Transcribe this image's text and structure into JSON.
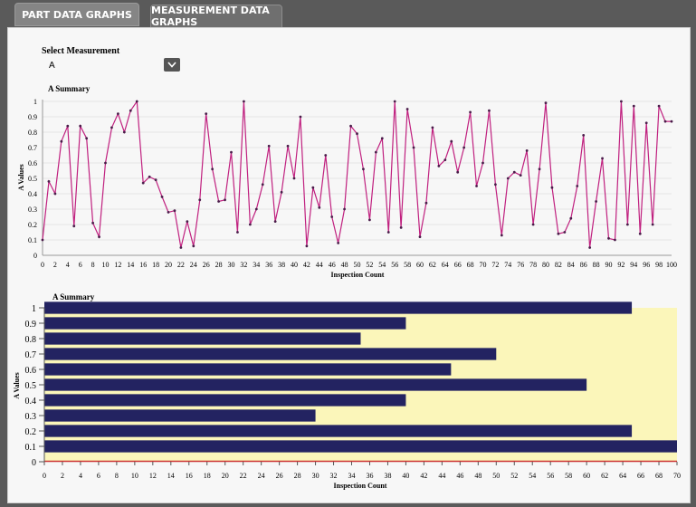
{
  "tabs": {
    "part": "PART DATA GRAPHS",
    "measurement": "MEASUREMENT DATA GRAPHS"
  },
  "select": {
    "label": "Select Measurement",
    "value": "A"
  },
  "colors": {
    "line": "#c0207f",
    "marker": "#4a1d4a",
    "bar": "#232361",
    "plot_bg": "#fbf6ba",
    "zero_line": "#cc3333"
  },
  "chart_data": [
    {
      "type": "line",
      "title": "A Summary",
      "xlabel": "Inspection Count",
      "ylabel": "A Values",
      "xlim": [
        0,
        100
      ],
      "ylim": [
        0,
        1
      ],
      "x_ticks": [
        0,
        2,
        4,
        6,
        8,
        10,
        12,
        14,
        16,
        18,
        20,
        22,
        24,
        26,
        28,
        30,
        32,
        34,
        36,
        38,
        40,
        42,
        44,
        46,
        48,
        50,
        52,
        54,
        56,
        58,
        60,
        62,
        64,
        66,
        68,
        70,
        72,
        74,
        76,
        78,
        80,
        82,
        84,
        86,
        88,
        90,
        92,
        94,
        96,
        98,
        100
      ],
      "y_ticks": [
        0,
        0.1,
        0.2,
        0.3,
        0.4,
        0.5,
        0.6,
        0.7,
        0.8,
        0.9,
        1
      ],
      "grid": "horizontal",
      "series": [
        {
          "x": [
            0,
            1,
            2,
            3,
            4,
            5,
            6,
            7,
            8,
            9,
            10,
            11,
            12,
            13,
            14,
            15,
            16,
            17,
            18,
            19,
            20,
            21,
            22,
            23,
            24,
            25,
            26,
            27,
            28,
            29,
            30,
            31,
            32,
            33,
            34,
            35,
            36,
            37,
            38,
            39,
            40,
            41,
            42,
            43,
            44,
            45,
            46,
            47,
            48,
            49,
            50,
            51,
            52,
            53,
            54,
            55,
            56,
            57,
            58,
            59,
            60,
            61,
            62,
            63,
            64,
            65,
            66,
            67,
            68,
            69,
            70,
            71,
            72,
            73,
            74,
            75,
            76,
            77,
            78,
            79,
            80,
            81,
            82,
            83,
            84,
            85,
            86,
            87,
            88,
            89,
            90,
            91,
            92,
            93,
            94,
            95,
            96,
            97,
            98,
            99,
            100
          ],
          "values": [
            0.1,
            0.48,
            0.4,
            0.74,
            0.84,
            0.19,
            0.84,
            0.76,
            0.21,
            0.12,
            0.6,
            0.83,
            0.92,
            0.8,
            0.94,
            1.0,
            0.47,
            0.51,
            0.49,
            0.38,
            0.28,
            0.29,
            0.05,
            0.22,
            0.06,
            0.36,
            0.92,
            0.56,
            0.35,
            0.36,
            0.67,
            0.15,
            1.0,
            0.2,
            0.3,
            0.46,
            0.71,
            0.22,
            0.41,
            0.71,
            0.5,
            0.9,
            0.06,
            0.44,
            0.31,
            0.65,
            0.25,
            0.08,
            0.3,
            0.84,
            0.79,
            0.56,
            0.23,
            0.67,
            0.76,
            0.15,
            1.0,
            0.18,
            0.95,
            0.7,
            0.12,
            0.34,
            0.83,
            0.58,
            0.62,
            0.74,
            0.54,
            0.7,
            0.93,
            0.45,
            0.6,
            0.94,
            0.46,
            0.13,
            0.5,
            0.54,
            0.52,
            0.68,
            0.2,
            0.56,
            0.99,
            0.44,
            0.14,
            0.15,
            0.24,
            0.45,
            0.78,
            0.05,
            0.35,
            0.63,
            0.11,
            0.1,
            1.0,
            0.2,
            0.97,
            0.14,
            0.86,
            0.2,
            0.97,
            0.87,
            0.87
          ]
        }
      ]
    },
    {
      "type": "bar",
      "orientation": "horizontal",
      "title": "A Summary",
      "xlabel": "Inspection Count",
      "ylabel": "A Values",
      "xlim": [
        0,
        70
      ],
      "ylim": [
        0,
        1
      ],
      "x_ticks": [
        0,
        2,
        4,
        6,
        8,
        10,
        12,
        14,
        16,
        18,
        20,
        22,
        24,
        26,
        28,
        30,
        32,
        34,
        36,
        38,
        40,
        42,
        44,
        46,
        48,
        50,
        52,
        54,
        56,
        58,
        60,
        62,
        64,
        66,
        68,
        70
      ],
      "categories": [
        "0",
        "0.1",
        "0.2",
        "0.3",
        "0.4",
        "0.5",
        "0.6",
        "0.7",
        "0.8",
        "0.9",
        "1"
      ],
      "values": [
        0,
        70,
        65,
        30,
        40,
        60,
        45,
        50,
        35,
        40,
        65
      ]
    }
  ]
}
